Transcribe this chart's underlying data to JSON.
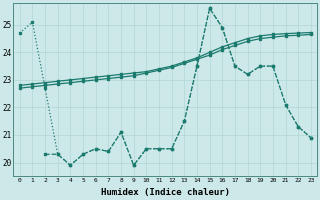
{
  "xlabel": "Humidex (Indice chaleur)",
  "bg_color": "#cce8e8",
  "line_color": "#1a7a6e",
  "xlim_min": -0.5,
  "xlim_max": 23.5,
  "ylim_min": 19.5,
  "ylim_max": 25.8,
  "yticks": [
    20,
    21,
    22,
    23,
    24,
    25
  ],
  "xticks": [
    0,
    1,
    2,
    3,
    4,
    5,
    6,
    7,
    8,
    9,
    10,
    11,
    12,
    13,
    14,
    15,
    16,
    17,
    18,
    19,
    20,
    21,
    22,
    23
  ],
  "series_dotted_x": [
    0,
    1,
    2,
    3,
    4,
    5,
    6,
    7,
    8,
    9,
    10,
    11,
    12,
    13,
    14,
    15,
    16,
    17,
    18,
    19,
    20,
    21,
    22,
    23
  ],
  "series_dotted_y": [
    24.7,
    25.1,
    22.7,
    20.3,
    19.9,
    20.3,
    20.5,
    20.4,
    21.1,
    19.9,
    20.5,
    20.5,
    20.5,
    21.5,
    23.5,
    25.6,
    24.9,
    23.5,
    23.2,
    23.5,
    23.5,
    22.1,
    21.3,
    20.9
  ],
  "series_solid1_x": [
    0,
    1,
    2,
    3,
    4,
    5,
    6,
    7,
    8,
    9,
    10,
    11,
    12,
    13,
    14,
    15,
    16,
    17,
    18,
    19,
    20,
    21,
    22,
    23
  ],
  "series_solid1_y": [
    22.8,
    22.85,
    22.9,
    22.95,
    23.0,
    23.05,
    23.1,
    23.15,
    23.2,
    23.25,
    23.3,
    23.4,
    23.5,
    23.65,
    23.8,
    24.0,
    24.2,
    24.35,
    24.5,
    24.6,
    24.65,
    24.68,
    24.7,
    24.72
  ],
  "series_solid2_x": [
    0,
    1,
    2,
    3,
    4,
    5,
    6,
    7,
    8,
    9,
    10,
    11,
    12,
    13,
    14,
    15,
    16,
    17,
    18,
    19,
    20,
    21,
    22,
    23
  ],
  "series_solid2_y": [
    22.7,
    22.75,
    22.8,
    22.85,
    22.9,
    22.95,
    23.0,
    23.05,
    23.1,
    23.15,
    23.25,
    23.35,
    23.45,
    23.6,
    23.75,
    23.9,
    24.1,
    24.25,
    24.4,
    24.5,
    24.55,
    24.6,
    24.62,
    24.65
  ],
  "series_dashed_x": [
    2,
    3,
    4,
    5,
    6,
    7,
    8,
    9,
    10,
    11,
    12,
    13,
    14,
    15,
    16,
    17,
    18,
    19,
    20,
    21,
    22,
    23
  ],
  "series_dashed_y": [
    20.3,
    20.3,
    19.9,
    20.3,
    20.5,
    20.4,
    21.1,
    19.9,
    20.5,
    20.5,
    20.5,
    21.5,
    23.5,
    25.6,
    24.9,
    23.5,
    23.2,
    23.5,
    23.5,
    22.1,
    21.3,
    20.9
  ]
}
